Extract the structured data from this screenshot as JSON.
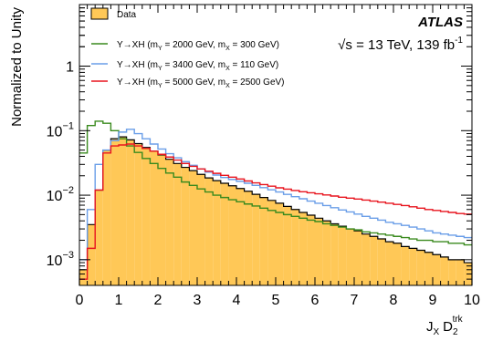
{
  "chart_data": {
    "type": "histogram",
    "xlabel": "J_X D_2^trk",
    "ylabel": "Normalized to Unity",
    "xlim": [
      0,
      10
    ],
    "ylim": [
      0.0004,
      9
    ],
    "yscale": "log",
    "grid": false,
    "legend_position": "top-left",
    "x_ticks": [
      "0",
      "1",
      "2",
      "3",
      "4",
      "5",
      "6",
      "7",
      "8",
      "9",
      "10"
    ],
    "y_ticks": [
      {
        "value": 0.001,
        "base": "10",
        "exp": "−3"
      },
      {
        "value": 0.01,
        "base": "10",
        "exp": "−2"
      },
      {
        "value": 0.1,
        "base": "10",
        "exp": "−1"
      },
      {
        "value": 1,
        "base": "1",
        "exp": ""
      }
    ],
    "annotations": {
      "experiment": "ATLAS",
      "energy": "√s = 13 TeV, 139 fb",
      "energy_sup": "-1"
    },
    "bin_edges": [
      0,
      0.2,
      0.4,
      0.6,
      0.8,
      1.0,
      1.2,
      1.4,
      1.6,
      1.8,
      2.0,
      2.2,
      2.4,
      2.6,
      2.8,
      3.0,
      3.2,
      3.4,
      3.6,
      3.8,
      4.0,
      4.2,
      4.4,
      4.6,
      4.8,
      5.0,
      5.2,
      5.4,
      5.6,
      5.8,
      6.0,
      6.2,
      6.4,
      6.6,
      6.8,
      7.0,
      7.2,
      7.4,
      7.6,
      7.8,
      8.0,
      8.2,
      8.4,
      8.6,
      8.8,
      9.0,
      9.2,
      9.4,
      9.6,
      9.8,
      10.0
    ],
    "series": [
      {
        "name": "Data",
        "legend_label": "Data",
        "style": "filled",
        "color": "#ffc857",
        "edge": "#000000",
        "values": [
          0.0007,
          0.0035,
          0.012,
          0.05,
          0.075,
          0.08,
          0.072,
          0.063,
          0.055,
          0.048,
          0.042,
          0.036,
          0.031,
          0.027,
          0.024,
          0.021,
          0.0185,
          0.0168,
          0.0153,
          0.014,
          0.0127,
          0.0115,
          0.0103,
          0.0092,
          0.0083,
          0.0075,
          0.0067,
          0.006,
          0.0054,
          0.0049,
          0.0044,
          0.004,
          0.0036,
          0.0033,
          0.003,
          0.0028,
          0.0025,
          0.0023,
          0.0021,
          0.0019,
          0.0018,
          0.0016,
          0.0015,
          0.0014,
          0.0013,
          0.0012,
          0.0011,
          0.001,
          0.001,
          0.0009
        ]
      },
      {
        "name": "Y→XH (m_Y = 2000 GeV, m_X = 300 GeV)",
        "legend_parts": [
          "Y→XH (m",
          "Y",
          " = 2000 GeV, m",
          "X",
          " = 300 GeV)"
        ],
        "style": "line",
        "color": "#3a8a1e",
        "values": [
          0.045,
          0.12,
          0.14,
          0.13,
          0.1,
          0.075,
          0.058,
          0.046,
          0.037,
          0.031,
          0.026,
          0.022,
          0.019,
          0.016,
          0.0142,
          0.0125,
          0.0112,
          0.01,
          0.0092,
          0.0085,
          0.0079,
          0.0073,
          0.0068,
          0.0063,
          0.0058,
          0.0054,
          0.005,
          0.0047,
          0.0044,
          0.0041,
          0.0039,
          0.0036,
          0.0034,
          0.0032,
          0.003,
          0.0029,
          0.0027,
          0.0026,
          0.0025,
          0.0024,
          0.0023,
          0.0022,
          0.0021,
          0.002,
          0.002,
          0.0019,
          0.0019,
          0.0018,
          0.0018,
          0.0017
        ]
      },
      {
        "name": "Y→XH (m_Y = 3400 GeV, m_X = 110 GeV)",
        "legend_parts": [
          "Y→XH (m",
          "Y",
          " = 3400 GeV, m",
          "X",
          " = 110 GeV)"
        ],
        "style": "line",
        "color": "#6a9ee8",
        "values": [
          0.001,
          0.006,
          0.03,
          0.05,
          0.07,
          0.095,
          0.105,
          0.09,
          0.075,
          0.062,
          0.052,
          0.044,
          0.038,
          0.033,
          0.029,
          0.0255,
          0.0228,
          0.0205,
          0.0188,
          0.0175,
          0.0164,
          0.0153,
          0.0142,
          0.0131,
          0.0121,
          0.0112,
          0.0103,
          0.0095,
          0.0088,
          0.0081,
          0.0075,
          0.0069,
          0.0064,
          0.0059,
          0.0055,
          0.0051,
          0.0047,
          0.0044,
          0.0041,
          0.0038,
          0.0036,
          0.0034,
          0.0032,
          0.003,
          0.0028,
          0.0026,
          0.0025,
          0.0024,
          0.0023,
          0.0022
        ]
      },
      {
        "name": "Y→XH (m_Y = 5000 GeV, m_X = 2500 GeV)",
        "legend_parts": [
          "Y→XH (m",
          "Y",
          " = 5000 GeV, m",
          "X",
          " = 2500 GeV)"
        ],
        "style": "line",
        "color": "#e8141e",
        "values": [
          0.0005,
          0.0015,
          0.012,
          0.045,
          0.058,
          0.06,
          0.062,
          0.058,
          0.053,
          0.048,
          0.043,
          0.039,
          0.035,
          0.031,
          0.028,
          0.0255,
          0.0235,
          0.0218,
          0.0203,
          0.019,
          0.0178,
          0.0166,
          0.0155,
          0.0146,
          0.0138,
          0.013,
          0.0124,
          0.0118,
          0.0113,
          0.0109,
          0.0105,
          0.0101,
          0.0097,
          0.0093,
          0.009,
          0.0087,
          0.0084,
          0.0081,
          0.0078,
          0.0075,
          0.0072,
          0.0069,
          0.0066,
          0.0063,
          0.006,
          0.0058,
          0.0056,
          0.0054,
          0.0052,
          0.0051
        ]
      }
    ]
  }
}
